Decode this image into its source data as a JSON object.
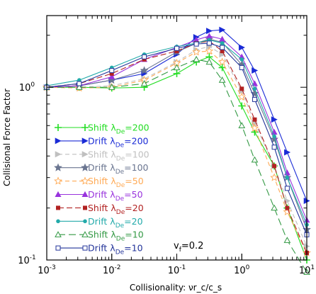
{
  "chart_data": {
    "type": "line",
    "title": "",
    "xlabel": "Collisionality: νr_c/c_s",
    "ylabel": "Collisional Force Factor",
    "x_scale": "log",
    "y_scale": "log",
    "xlim": [
      0.001,
      10
    ],
    "ylim": [
      0.1,
      2.6
    ],
    "x_ticks": [
      {
        "value": 0.001,
        "base": "10",
        "exp": "-3"
      },
      {
        "value": 0.01,
        "base": "10",
        "exp": "-2"
      },
      {
        "value": 0.1,
        "base": "10",
        "exp": "-1"
      },
      {
        "value": 1,
        "base": "10",
        "exp": "0"
      },
      {
        "value": 10,
        "base": "10",
        "exp": "1"
      }
    ],
    "y_ticks": [
      {
        "value": 0.1,
        "label": "10",
        "exp": "-1"
      },
      {
        "value": 1,
        "label": "10",
        "exp": "0"
      }
    ],
    "legend_position": "bottom-left",
    "annotation": {
      "main": "v",
      "sub": "f",
      "rest": "=0.2"
    },
    "series": [
      {
        "name": "Shift λDe=200",
        "label_main": "Shift λ",
        "label_sub": "De",
        "label_val": "=200",
        "color": "#22dd22",
        "marker": "plus",
        "dash": "none",
        "x": [
          0.001,
          0.00316,
          0.01,
          0.0316,
          0.1,
          0.2,
          0.316,
          0.5,
          1,
          1.58,
          3.16,
          5,
          10
        ],
        "y": [
          1.0,
          1.0,
          0.99,
          1.0,
          1.2,
          1.4,
          1.5,
          1.3,
          0.78,
          0.55,
          0.35,
          0.2,
          0.1
        ]
      },
      {
        "name": "Drift λDe=200",
        "label_main": "Drift λ",
        "label_sub": "De",
        "label_val": "=200",
        "color": "#1a2bd6",
        "marker": "tri-right",
        "dash": "none",
        "x": [
          0.001,
          0.00316,
          0.01,
          0.0316,
          0.1,
          0.2,
          0.316,
          0.5,
          1,
          1.58,
          3.16,
          5,
          10
        ],
        "y": [
          1.0,
          1.02,
          1.1,
          1.2,
          1.55,
          1.95,
          2.12,
          2.15,
          1.7,
          1.25,
          0.65,
          0.42,
          0.22
        ]
      },
      {
        "name": "Shift λDe=100",
        "label_main": "Shift λ",
        "label_sub": "De",
        "label_val": "=100",
        "color": "#c0c0c0",
        "marker": "tri-right",
        "dash": "6,4",
        "x": [
          0.001,
          0.00316,
          0.01,
          0.0316,
          0.1,
          0.2,
          0.316,
          0.5,
          1,
          1.58,
          3.16,
          5,
          10
        ],
        "y": [
          1.0,
          1.0,
          1.02,
          1.12,
          1.4,
          1.65,
          1.72,
          1.55,
          0.95,
          0.62,
          0.35,
          0.22,
          0.12
        ]
      },
      {
        "name": "Drift λDe=100",
        "label_main": "Drift λ",
        "label_sub": "De",
        "label_val": "=100",
        "color": "#6a7590",
        "marker": "star",
        "dash": "none",
        "x": [
          0.001,
          0.00316,
          0.01,
          0.0316,
          0.1,
          0.2,
          0.316,
          0.5,
          1,
          1.58,
          3.16,
          5,
          10
        ],
        "y": [
          1.0,
          1.02,
          1.1,
          1.25,
          1.6,
          1.8,
          1.9,
          1.82,
          1.35,
          0.92,
          0.5,
          0.3,
          0.15
        ]
      },
      {
        "name": "Shift λDe=50",
        "label_main": "Shift λ",
        "label_sub": "De",
        "label_val": "=50",
        "color": "#ffaa55",
        "marker": "star-open",
        "dash": "6,4",
        "x": [
          0.001,
          0.00316,
          0.01,
          0.0316,
          0.1,
          0.2,
          0.316,
          0.5,
          1,
          1.58,
          3.16,
          5,
          10
        ],
        "y": [
          1.0,
          0.99,
          1.0,
          1.1,
          1.38,
          1.6,
          1.62,
          1.4,
          0.88,
          0.58,
          0.3,
          0.19,
          0.11
        ]
      },
      {
        "name": "Drift λDe=50",
        "label_main": "Drift λ",
        "label_sub": "De",
        "label_val": "=50",
        "color": "#9933dd",
        "marker": "triangle",
        "dash": "none",
        "x": [
          0.001,
          0.00316,
          0.01,
          0.0316,
          0.1,
          0.2,
          0.316,
          0.5,
          1,
          1.58,
          3.16,
          5,
          10
        ],
        "y": [
          1.0,
          1.02,
          1.15,
          1.45,
          1.7,
          1.88,
          1.98,
          1.9,
          1.5,
          1.05,
          0.55,
          0.32,
          0.17
        ]
      },
      {
        "name": "Shift λDe=20",
        "label_main": "Shift λ",
        "label_sub": "De",
        "label_val": "=20",
        "color": "#b22222",
        "marker": "square",
        "dash": "8,4",
        "x": [
          0.001,
          0.00316,
          0.01,
          0.0316,
          0.1,
          0.2,
          0.316,
          0.5,
          1,
          1.58,
          3.16,
          5,
          10
        ],
        "y": [
          1.0,
          1.05,
          1.2,
          1.45,
          1.62,
          1.8,
          1.85,
          1.62,
          0.98,
          0.65,
          0.35,
          0.2,
          0.11
        ]
      },
      {
        "name": "Drift λDe=20",
        "label_main": "Drift λ",
        "label_sub": "De",
        "label_val": "=20",
        "color": "#22aaaa",
        "marker": "circle",
        "dash": "none",
        "x": [
          0.001,
          0.00316,
          0.01,
          0.0316,
          0.1,
          0.2,
          0.316,
          0.5,
          1,
          1.58,
          3.16,
          5,
          10
        ],
        "y": [
          1.02,
          1.1,
          1.3,
          1.55,
          1.72,
          1.8,
          1.88,
          1.8,
          1.45,
          0.98,
          0.52,
          0.3,
          0.16
        ]
      },
      {
        "name": "Shift λDe=10",
        "label_main": "Shift λ",
        "label_sub": "De",
        "label_val": "=10",
        "color": "#339944",
        "marker": "triangle-open",
        "dash": "10,5",
        "x": [
          0.001,
          0.00316,
          0.01,
          0.0316,
          0.1,
          0.2,
          0.316,
          0.5,
          1,
          1.58,
          3.16,
          5,
          10
        ],
        "y": [
          1.0,
          1.0,
          1.0,
          1.05,
          1.3,
          1.45,
          1.4,
          1.1,
          0.6,
          0.38,
          0.2,
          0.13,
          0.085
        ]
      },
      {
        "name": "Drift λDe=10",
        "label_main": "Drift λ",
        "label_sub": "De",
        "label_val": "=10",
        "color": "#223399",
        "marker": "square-open",
        "dash": "none",
        "x": [
          0.001,
          0.00316,
          0.01,
          0.0316,
          0.1,
          0.2,
          0.316,
          0.5,
          1,
          1.58,
          3.16,
          5,
          10
        ],
        "y": [
          1.0,
          1.05,
          1.25,
          1.5,
          1.68,
          1.78,
          1.8,
          1.7,
          1.3,
          0.85,
          0.45,
          0.26,
          0.14
        ]
      }
    ]
  }
}
